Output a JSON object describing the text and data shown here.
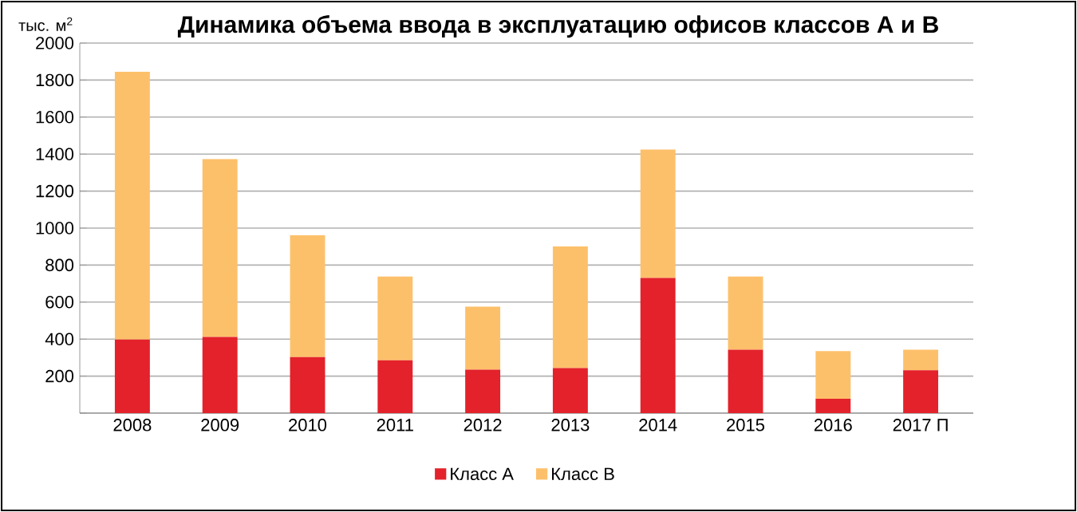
{
  "chart_data": {
    "type": "bar",
    "stacked": true,
    "title": "Динамика объема ввода в эксплуатацию офисов классов А и В",
    "ylabel": "тыс. м$^{2}$",
    "categories": [
      "2008",
      "2009",
      "2010",
      "2011",
      "2012",
      "2013",
      "2014",
      "2015",
      "2016",
      "2017 П"
    ],
    "series": [
      {
        "name": "Класс А",
        "color": "#e3222b",
        "values": [
          398,
          412,
          303,
          286,
          235,
          243,
          730,
          343,
          77,
          232
        ]
      },
      {
        "name": "Класс В",
        "color": "#fdc06a",
        "values": [
          1447,
          961,
          658,
          452,
          340,
          658,
          695,
          395,
          258,
          111
        ]
      }
    ],
    "ylim": [
      0,
      2000
    ],
    "yticks": [
      {
        "value": 0,
        "label": null
      },
      200,
      400,
      600,
      800,
      1000,
      1200,
      1400,
      1600,
      1800,
      2000
    ],
    "grid": "y",
    "legend": "bottom"
  }
}
